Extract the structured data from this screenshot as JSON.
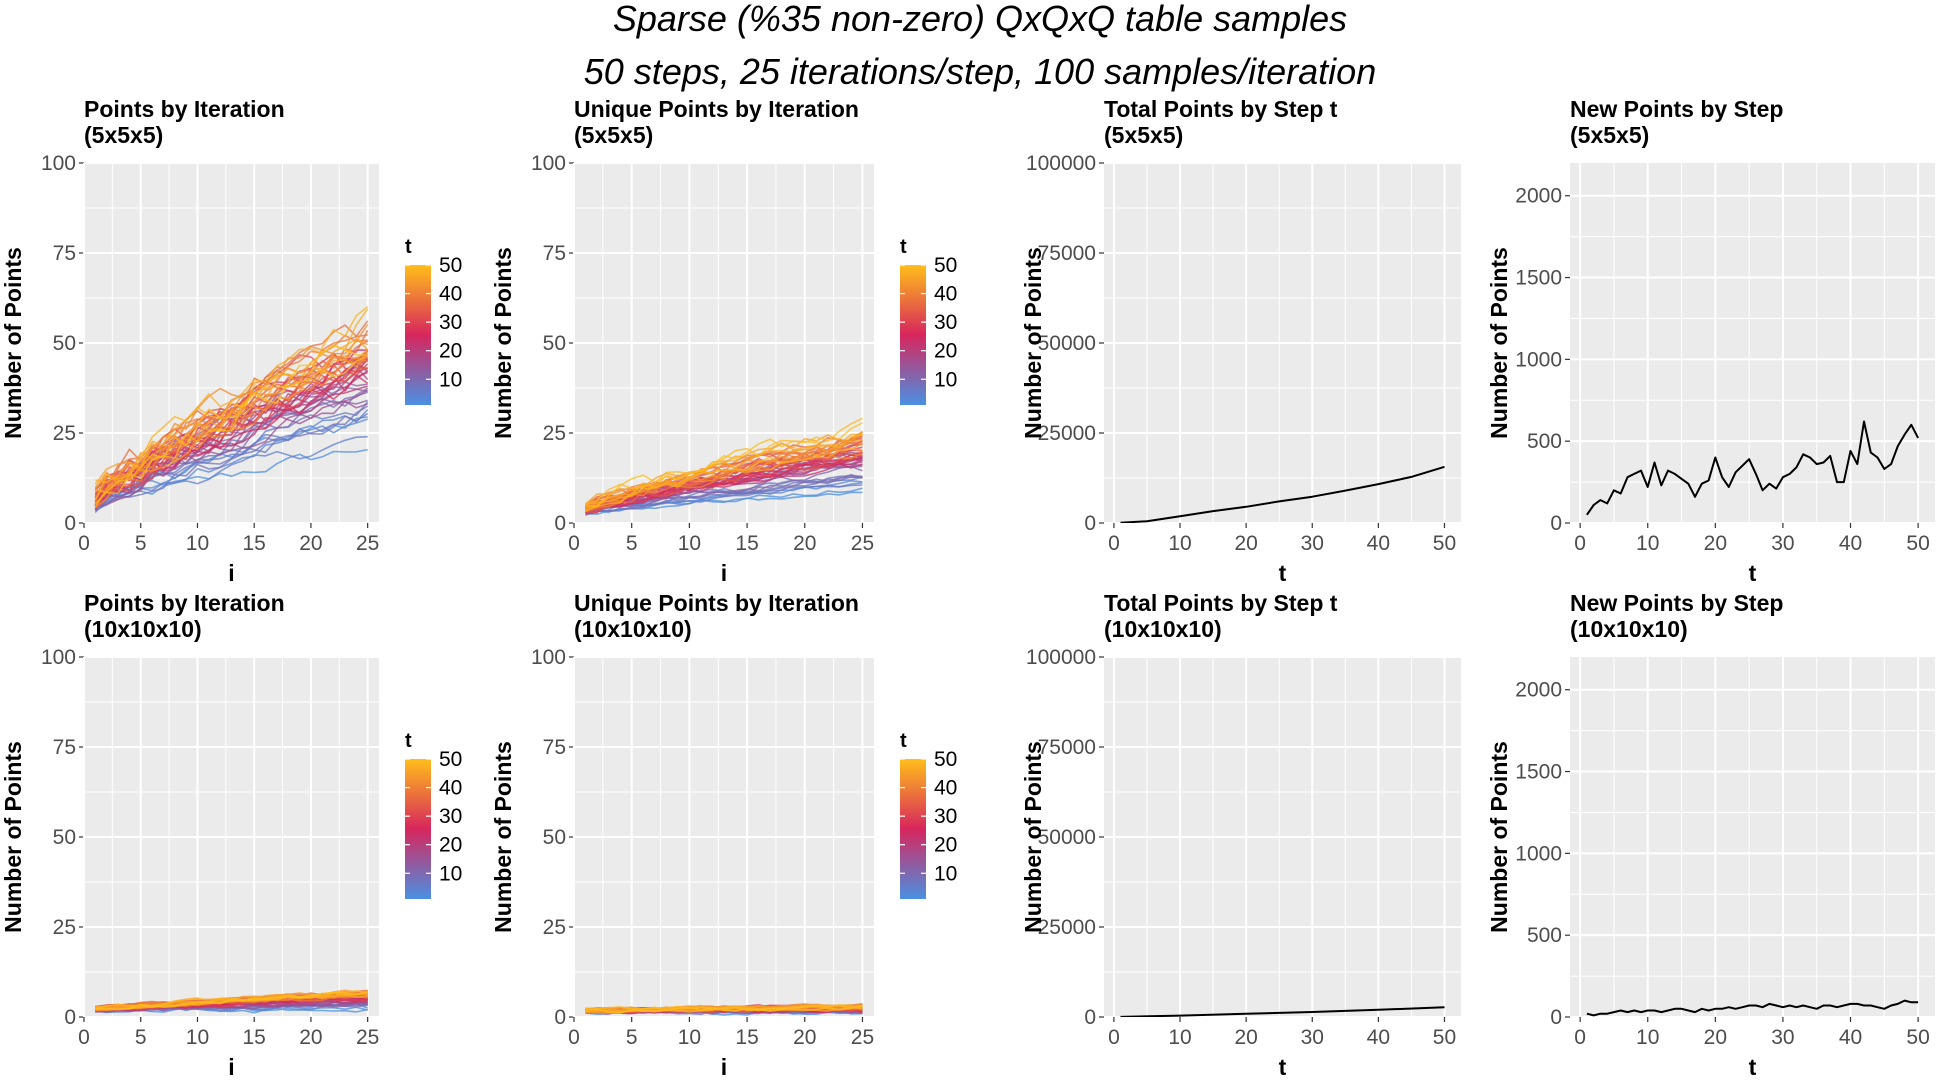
{
  "figure": {
    "title_line1": "Sparse (%35 non-zero) QxQxQ table samples",
    "title_line2": "50 steps, 25 iterations/step, 100 samples/iteration"
  },
  "colors": {
    "panel_bg": "#ebebeb",
    "grid": "#ffffff",
    "line_black": "#000000",
    "gradient_low": "#4a90e2",
    "gradient_mid": "#d7265d",
    "gradient_high": "#ffbe1a"
  },
  "chart_data": [
    {
      "id": "p1",
      "type": "line",
      "title": "Points by Iteration",
      "subtitle": "(5x5x5)",
      "xlabel": "i",
      "ylabel": "Number of Points",
      "xlim": [
        0,
        26
      ],
      "ylim": [
        0,
        100
      ],
      "xticks": [
        0,
        5,
        10,
        15,
        20,
        25
      ],
      "yticks": [
        0,
        25,
        50,
        75,
        100
      ],
      "series_mode": "gradient",
      "series_count": 50,
      "series_variable": "t",
      "series_endpoint_values": {
        "x_start": 1,
        "x_end": 25,
        "t1_end": 19,
        "t50_end": 55
      },
      "legend": {
        "title": "t",
        "labels": [
          "50",
          "40",
          "30",
          "20",
          "10"
        ],
        "values": [
          50,
          40,
          30,
          20,
          10
        ]
      }
    },
    {
      "id": "p2",
      "type": "line",
      "title": "Unique Points by Iteration",
      "subtitle": "(5x5x5)",
      "xlabel": "i",
      "ylabel": "Number of Points",
      "xlim": [
        0,
        26
      ],
      "ylim": [
        0,
        100
      ],
      "xticks": [
        0,
        5,
        10,
        15,
        20,
        25
      ],
      "yticks": [
        0,
        25,
        50,
        75,
        100
      ],
      "series_mode": "gradient",
      "series_count": 50,
      "series_variable": "t",
      "series_endpoint_values": {
        "x_start": 1,
        "x_end": 25,
        "t1_end": 6,
        "t50_end": 25
      },
      "legend": {
        "title": "t",
        "labels": [
          "50",
          "40",
          "30",
          "20",
          "10"
        ],
        "values": [
          50,
          40,
          30,
          20,
          10
        ]
      }
    },
    {
      "id": "p3",
      "type": "line",
      "title": "Total Points by Step t",
      "subtitle": "(5x5x5)",
      "xlabel": "t",
      "ylabel": "Number of Points",
      "xlim": [
        -1.5,
        52.5
      ],
      "ylim": [
        0,
        100000
      ],
      "xticks": [
        0,
        10,
        20,
        30,
        40,
        50
      ],
      "yticks": [
        0,
        25000,
        50000,
        75000,
        100000
      ],
      "ytick_labels": [
        "0",
        "25000",
        "50000",
        "75000",
        "100000"
      ],
      "x": [
        1,
        5,
        10,
        15,
        20,
        25,
        30,
        35,
        40,
        45,
        50
      ],
      "y": [
        60,
        500,
        1900,
        3300,
        4500,
        6000,
        7300,
        9000,
        10800,
        12800,
        15600
      ]
    },
    {
      "id": "p4",
      "type": "line",
      "title": "New Points by Step",
      "subtitle": "(5x5x5)",
      "xlabel": "t",
      "ylabel": "Number of Points",
      "xlim": [
        -1.5,
        52.5
      ],
      "ylim": [
        0,
        2200
      ],
      "xticks": [
        0,
        10,
        20,
        30,
        40,
        50
      ],
      "yticks": [
        0,
        500,
        1000,
        1500,
        2000
      ],
      "ytick_labels": [
        "0",
        "500",
        "1000",
        "1500",
        "2000"
      ],
      "x": [
        1,
        2,
        3,
        4,
        5,
        6,
        7,
        8,
        9,
        10,
        11,
        12,
        13,
        14,
        15,
        16,
        17,
        18,
        19,
        20,
        21,
        22,
        23,
        24,
        25,
        26,
        27,
        28,
        29,
        30,
        31,
        32,
        33,
        34,
        35,
        36,
        37,
        38,
        39,
        40,
        41,
        42,
        43,
        44,
        45,
        46,
        47,
        48,
        49,
        50
      ],
      "y": [
        50,
        110,
        140,
        120,
        200,
        180,
        280,
        300,
        320,
        220,
        370,
        230,
        320,
        300,
        270,
        240,
        160,
        240,
        260,
        400,
        280,
        220,
        310,
        350,
        390,
        300,
        200,
        240,
        210,
        280,
        300,
        340,
        420,
        400,
        360,
        370,
        410,
        250,
        250,
        440,
        360,
        620,
        430,
        400,
        330,
        360,
        470,
        540,
        600,
        520
      ]
    },
    {
      "id": "p5",
      "type": "line",
      "title": "Points by Iteration",
      "subtitle": "(10x10x10)",
      "xlabel": "i",
      "ylabel": "Number of Points",
      "xlim": [
        0,
        26
      ],
      "ylim": [
        0,
        100
      ],
      "xticks": [
        0,
        5,
        10,
        15,
        20,
        25
      ],
      "yticks": [
        0,
        25,
        50,
        75,
        100
      ],
      "series_mode": "gradient",
      "series_count": 50,
      "series_variable": "t",
      "series_endpoint_values": {
        "x_start": 1,
        "x_end": 25,
        "t1_end": 2,
        "t50_end": 7
      },
      "legend": {
        "title": "t",
        "labels": [
          "50",
          "40",
          "30",
          "20",
          "10"
        ],
        "values": [
          50,
          40,
          30,
          20,
          10
        ]
      }
    },
    {
      "id": "p6",
      "type": "line",
      "title": "Unique Points by Iteration",
      "subtitle": "(10x10x10)",
      "xlabel": "i",
      "ylabel": "Number of Points",
      "xlim": [
        0,
        26
      ],
      "ylim": [
        0,
        100
      ],
      "xticks": [
        0,
        5,
        10,
        15,
        20,
        25
      ],
      "yticks": [
        0,
        25,
        50,
        75,
        100
      ],
      "series_mode": "gradient",
      "series_count": 50,
      "series_variable": "t",
      "series_endpoint_values": {
        "x_start": 1,
        "x_end": 25,
        "t1_end": 1,
        "t50_end": 3
      },
      "legend": {
        "title": "t",
        "labels": [
          "50",
          "40",
          "30",
          "20",
          "10"
        ],
        "values": [
          50,
          40,
          30,
          20,
          10
        ]
      }
    },
    {
      "id": "p7",
      "type": "line",
      "title": "Total Points by Step t",
      "subtitle": "(10x10x10)",
      "xlabel": "t",
      "ylabel": "Number of Points",
      "xlim": [
        -1.5,
        52.5
      ],
      "ylim": [
        0,
        100000
      ],
      "xticks": [
        0,
        10,
        20,
        30,
        40,
        50
      ],
      "yticks": [
        0,
        25000,
        50000,
        75000,
        100000
      ],
      "ytick_labels": [
        "0",
        "25000",
        "50000",
        "75000",
        "100000"
      ],
      "x": [
        1,
        10,
        20,
        30,
        40,
        50
      ],
      "y": [
        20,
        400,
        900,
        1400,
        2000,
        2700
      ]
    },
    {
      "id": "p8",
      "type": "line",
      "title": "New Points by Step",
      "subtitle": "(10x10x10)",
      "xlabel": "t",
      "ylabel": "Number of Points",
      "xlim": [
        -1.5,
        52.5
      ],
      "ylim": [
        0,
        2200
      ],
      "xticks": [
        0,
        10,
        20,
        30,
        40,
        50
      ],
      "yticks": [
        0,
        500,
        1000,
        1500,
        2000
      ],
      "ytick_labels": [
        "0",
        "500",
        "1000",
        "1500",
        "2000"
      ],
      "x": [
        1,
        2,
        3,
        4,
        5,
        6,
        7,
        8,
        9,
        10,
        11,
        12,
        13,
        14,
        15,
        16,
        17,
        18,
        19,
        20,
        21,
        22,
        23,
        24,
        25,
        26,
        27,
        28,
        29,
        30,
        31,
        32,
        33,
        34,
        35,
        36,
        37,
        38,
        39,
        40,
        41,
        42,
        43,
        44,
        45,
        46,
        47,
        48,
        49,
        50
      ],
      "y": [
        20,
        10,
        20,
        20,
        30,
        40,
        30,
        40,
        30,
        40,
        40,
        30,
        40,
        50,
        50,
        40,
        30,
        50,
        40,
        50,
        50,
        60,
        50,
        60,
        70,
        70,
        60,
        80,
        70,
        60,
        70,
        60,
        70,
        60,
        50,
        70,
        70,
        60,
        70,
        80,
        80,
        70,
        70,
        60,
        50,
        70,
        80,
        100,
        90,
        90
      ]
    }
  ]
}
